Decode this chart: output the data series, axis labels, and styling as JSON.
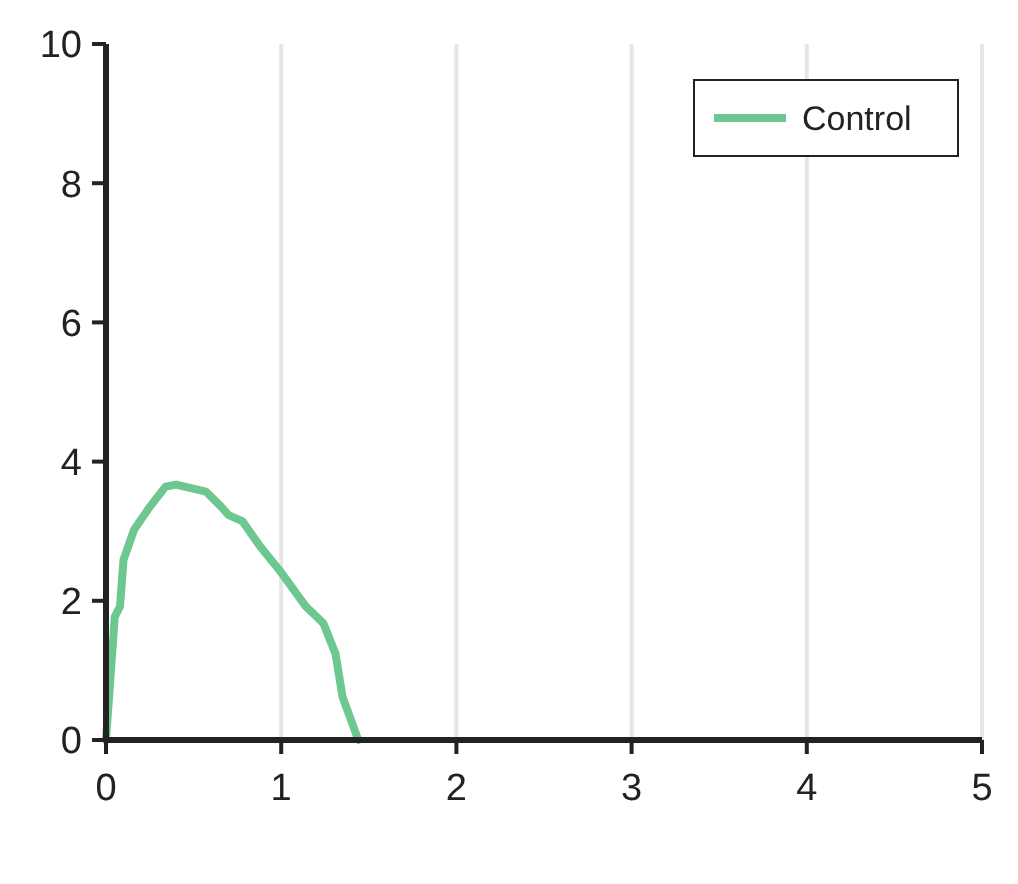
{
  "chart_data": {
    "type": "line",
    "xlim": [
      0,
      5
    ],
    "ylim": [
      0,
      10
    ],
    "xticks": [
      0,
      1,
      2,
      3,
      4,
      5
    ],
    "yticks": [
      0,
      2,
      4,
      6,
      8,
      10
    ],
    "grid": "x",
    "legend": "top right",
    "series": [
      {
        "name": "Control",
        "color": "#6cc790",
        "x": [
          0,
          0.05,
          0.08,
          0.1,
          0.16,
          0.25,
          0.34,
          0.4,
          0.57,
          0.65,
          0.7,
          0.78,
          0.88,
          0.99,
          1.14,
          1.24,
          1.31,
          1.35,
          1.44
        ],
        "values": [
          0,
          1.77,
          1.92,
          2.59,
          3.02,
          3.35,
          3.64,
          3.67,
          3.57,
          3.37,
          3.23,
          3.14,
          2.78,
          2.44,
          1.92,
          1.68,
          1.24,
          0.62,
          0
        ]
      }
    ]
  }
}
